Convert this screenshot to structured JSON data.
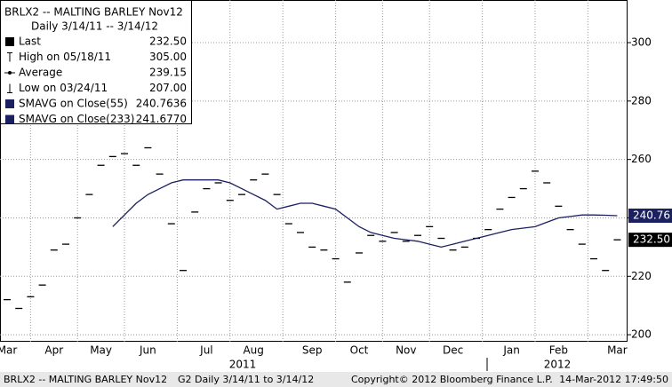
{
  "chart_data": {
    "type": "line",
    "legend": {
      "title": "BRLX2 -- MALTING BARLEY  Nov12",
      "subtitle": "Daily 3/14/11 -- 3/14/12",
      "rows": [
        {
          "label": "Last",
          "value": "232.50"
        },
        {
          "label": "High on 05/18/11",
          "value": "305.00"
        },
        {
          "label": "Average",
          "value": "239.15"
        },
        {
          "label": "Low on 03/24/11",
          "value": "207.00"
        },
        {
          "label": "SMAVG on Close(55)",
          "value": "240.7636"
        },
        {
          "label": "SMAVG on Close(233)",
          "value": "241.6770"
        }
      ]
    },
    "categories": [
      "Mar",
      null,
      null,
      null,
      "Apr",
      null,
      null,
      null,
      "May",
      null,
      null,
      null,
      "Jun",
      null,
      null,
      null,
      null,
      "Jul",
      null,
      null,
      null,
      "Aug",
      null,
      null,
      null,
      null,
      "Sep",
      null,
      null,
      null,
      "Oct",
      null,
      null,
      null,
      "Nov",
      null,
      null,
      null,
      "Dec",
      null,
      null,
      null,
      null,
      "Jan",
      null,
      null,
      null,
      "Feb",
      null,
      null,
      null,
      null,
      "Mar"
    ],
    "series": [
      {
        "color": "#000000",
        "end_label": "232.50",
        "values": [
          212,
          209,
          213,
          217,
          229,
          231,
          240,
          248,
          258,
          261,
          262,
          258,
          264,
          255,
          238,
          222,
          242,
          250,
          252,
          246,
          248,
          253,
          255,
          248,
          238,
          235,
          230,
          229,
          226,
          218,
          228,
          234,
          232,
          235,
          232,
          234,
          237,
          233,
          229,
          230,
          233,
          236,
          243,
          247,
          250,
          256,
          252,
          244,
          236,
          231,
          226,
          222,
          232.5
        ]
      },
      {
        "color": "#1a2060",
        "end_label": "240.76",
        "values": [
          null,
          null,
          null,
          null,
          null,
          null,
          null,
          null,
          null,
          237,
          241,
          245,
          248,
          250,
          252,
          253,
          253,
          253,
          253,
          252,
          250,
          248,
          246,
          243,
          244,
          245,
          245,
          244,
          243,
          240,
          237,
          235,
          234,
          233,
          232.5,
          232,
          231,
          230,
          231,
          232,
          233,
          234,
          235,
          236,
          236.5,
          237,
          238.5,
          240,
          240.5,
          241,
          241,
          240.9,
          240.76
        ]
      }
    ],
    "ylim": [
      197.6,
      314.6
    ],
    "yticks": [
      200,
      220,
      240,
      260,
      280,
      300
    ],
    "grid": true,
    "year_labels": [
      "2011",
      "2012"
    ],
    "footer": [
      "BRLX2 -- MALTING BARLEY  Nov12",
      "G2  Daily  3/14/11 to 3/14/12",
      "Copyright© 2012 Bloomberg Finance L.P.",
      "14-Mar-2012 17:49:50"
    ]
  }
}
